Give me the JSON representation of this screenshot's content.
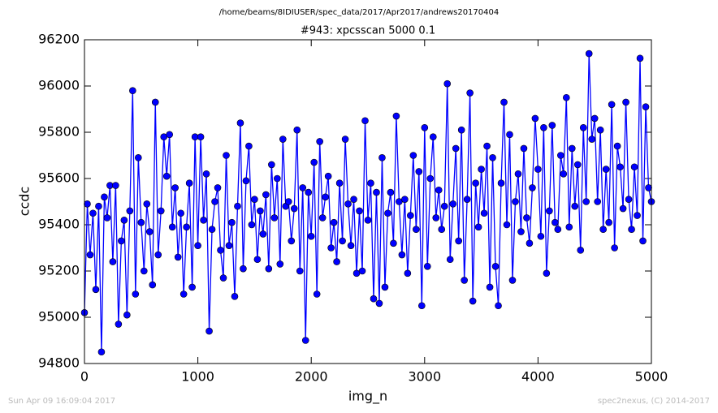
{
  "chart_data": {
    "type": "line",
    "suptitle": "/home/beams/8IDIUSER/spec_data/2017/Apr2017/andrews20170404",
    "title": "#943: xpcsscan 5000 0.1",
    "xlabel": "img_n",
    "ylabel": "ccdc",
    "footer_left": "Sun Apr 09 16:09:04 2017",
    "footer_right": "spec2nexus, (C) 2014-2017",
    "color": "#0000ff",
    "marker": "o",
    "xlim": [
      0,
      5000
    ],
    "xticks": [
      0,
      1000,
      2000,
      3000,
      4000,
      5000
    ],
    "ylim": [
      94800,
      96200
    ],
    "yticks": [
      94800,
      95000,
      95200,
      95400,
      95600,
      95800,
      96000,
      96200
    ],
    "grid": false,
    "x": [
      0,
      25,
      50,
      75,
      100,
      125,
      150,
      175,
      200,
      225,
      250,
      275,
      300,
      325,
      350,
      375,
      400,
      425,
      450,
      475,
      500,
      525,
      550,
      575,
      600,
      625,
      650,
      675,
      700,
      725,
      750,
      775,
      800,
      825,
      850,
      875,
      900,
      925,
      950,
      975,
      1000,
      1025,
      1050,
      1075,
      1100,
      1125,
      1150,
      1175,
      1200,
      1225,
      1250,
      1275,
      1300,
      1325,
      1350,
      1375,
      1400,
      1425,
      1450,
      1475,
      1500,
      1525,
      1550,
      1575,
      1600,
      1625,
      1650,
      1675,
      1700,
      1725,
      1750,
      1775,
      1800,
      1825,
      1850,
      1875,
      1900,
      1925,
      1950,
      1975,
      2000,
      2025,
      2050,
      2075,
      2100,
      2125,
      2150,
      2175,
      2200,
      2225,
      2250,
      2275,
      2300,
      2325,
      2350,
      2375,
      2400,
      2425,
      2450,
      2475,
      2500,
      2525,
      2550,
      2575,
      2600,
      2625,
      2650,
      2675,
      2700,
      2725,
      2750,
      2775,
      2800,
      2825,
      2850,
      2875,
      2900,
      2925,
      2950,
      2975,
      3000,
      3025,
      3050,
      3075,
      3100,
      3125,
      3150,
      3175,
      3200,
      3225,
      3250,
      3275,
      3300,
      3325,
      3350,
      3375,
      3400,
      3425,
      3450,
      3475,
      3500,
      3525,
      3550,
      3575,
      3600,
      3625,
      3650,
      3675,
      3700,
      3725,
      3750,
      3775,
      3800,
      3825,
      3850,
      3875,
      3900,
      3925,
      3950,
      3975,
      4000,
      4025,
      4050,
      4075,
      4100,
      4125,
      4150,
      4175,
      4200,
      4225,
      4250,
      4275,
      4300,
      4325,
      4350,
      4375,
      4400,
      4425,
      4450,
      4475,
      4500,
      4525,
      4550,
      4575,
      4600,
      4625,
      4650,
      4675,
      4700,
      4725,
      4750,
      4775,
      4800,
      4825,
      4850,
      4875,
      4900,
      4925,
      4950,
      4975,
      5000
    ],
    "values": [
      95020,
      95490,
      95270,
      95450,
      95120,
      95480,
      94850,
      95520,
      95430,
      95570,
      95240,
      95570,
      94970,
      95330,
      95420,
      95010,
      95460,
      95980,
      95100,
      95690,
      95410,
      95200,
      95490,
      95370,
      95140,
      95930,
      95270,
      95460,
      95780,
      95610,
      95790,
      95390,
      95560,
      95260,
      95450,
      95100,
      95390,
      95580,
      95130,
      95780,
      95310,
      95780,
      95420,
      95620,
      94940,
      95380,
      95500,
      95560,
      95290,
      95170,
      95700,
      95310,
      95410,
      95090,
      95480,
      95840,
      95210,
      95590,
      95740,
      95400,
      95510,
      95250,
      95460,
      95360,
      95530,
      95210,
      95660,
      95430,
      95600,
      95230,
      95770,
      95480,
      95500,
      95330,
      95470,
      95810,
      95200,
      95560,
      94900,
      95540,
      95350,
      95670,
      95100,
      95760,
      95430,
      95520,
      95610,
      95300,
      95410,
      95240,
      95580,
      95330,
      95770,
      95490,
      95310,
      95510,
      95190,
      95460,
      95200,
      95850,
      95420,
      95580,
      95080,
      95540,
      95060,
      95690,
      95130,
      95450,
      95540,
      95320,
      95870,
      95500,
      95270,
      95510,
      95190,
      95440,
      95700,
      95380,
      95630,
      95050,
      95820,
      95220,
      95600,
      95780,
      95430,
      95550,
      95380,
      95480,
      96010,
      95250,
      95490,
      95730,
      95330,
      95810,
      95160,
      95510,
      95970,
      95070,
      95580,
      95390,
      95640,
      95450,
      95740,
      95130,
      95690,
      95220,
      95050,
      95580,
      95930,
      95400,
      95790,
      95160,
      95500,
      95620,
      95370,
      95730,
      95430,
      95320,
      95560,
      95860,
      95640,
      95350,
      95820,
      95190,
      95460,
      95830,
      95410,
      95380,
      95700,
      95620,
      95950,
      95390,
      95730,
      95480,
      95660,
      95290,
      95820,
      95500,
      96140,
      95770,
      95860,
      95500,
      95810,
      95380,
      95640,
      95410,
      95920,
      95300,
      95740,
      95650,
      95470,
      95930,
      95510,
      95380,
      95650,
      95440,
      96120,
      95330,
      95910,
      95560,
      95500
    ]
  }
}
